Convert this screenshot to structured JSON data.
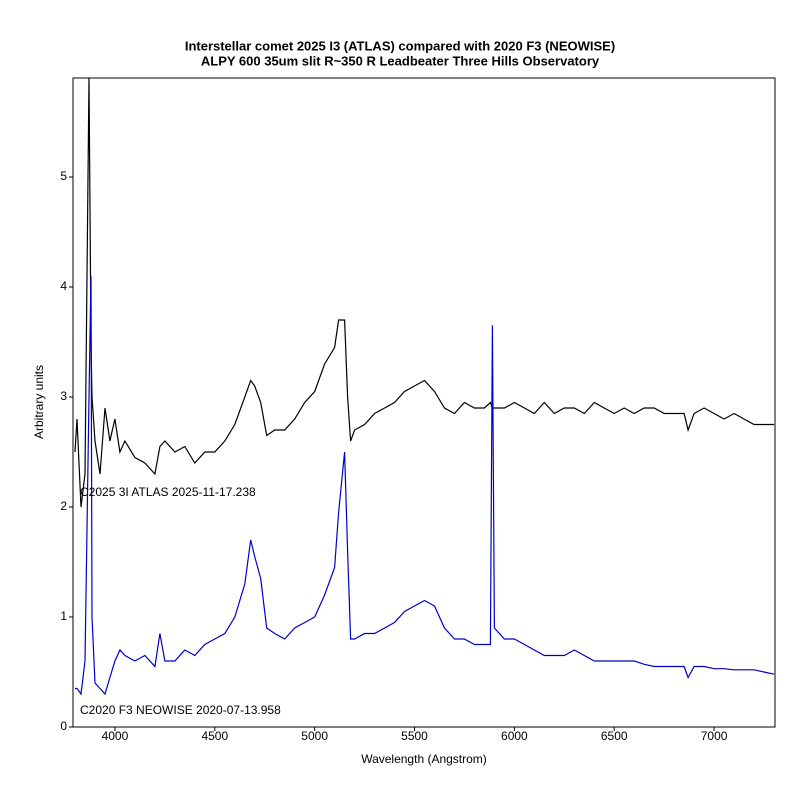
{
  "chart_data": {
    "type": "line",
    "title": "Interstellar comet 2025 I3 (ATLAS) compared with 2020 F3 (NEOWISE)",
    "subtitle": "ALPY 600  35um slit R~350  R Leadbeater  Three Hills Observatory",
    "x_label": "Wavelength (Angstrom)",
    "y_label": "Arbitrary units",
    "xlim": [
      3790,
      7305
    ],
    "ylim": [
      0,
      5.9
    ],
    "xticks": [
      4000,
      4500,
      5000,
      5500,
      6000,
      6500,
      7000
    ],
    "yticks": [
      0,
      1,
      2,
      3,
      4,
      5
    ],
    "x": [
      3800,
      3810,
      3830,
      3850,
      3870,
      3880,
      3885,
      3900,
      3925,
      3950,
      3975,
      4000,
      4025,
      4050,
      4100,
      4150,
      4200,
      4225,
      4250,
      4300,
      4350,
      4400,
      4450,
      4500,
      4550,
      4600,
      4650,
      4680,
      4700,
      4730,
      4760,
      4800,
      4850,
      4900,
      4950,
      5000,
      5050,
      5100,
      5120,
      5150,
      5165,
      5180,
      5200,
      5250,
      5300,
      5350,
      5400,
      5450,
      5500,
      5550,
      5600,
      5650,
      5700,
      5750,
      5800,
      5850,
      5880,
      5890,
      5900,
      5950,
      6000,
      6050,
      6100,
      6150,
      6200,
      6250,
      6300,
      6350,
      6400,
      6450,
      6500,
      6550,
      6600,
      6650,
      6700,
      6750,
      6800,
      6850,
      6870,
      6900,
      6950,
      7000,
      7050,
      7100,
      7150,
      7200,
      7250,
      7300
    ],
    "series": [
      {
        "name": "C2025 3I ATLAS  2025-11-17.238",
        "color": "#000000",
        "values": [
          2.5,
          2.8,
          2.0,
          2.3,
          5.9,
          3.5,
          3.0,
          2.6,
          2.3,
          2.9,
          2.6,
          2.8,
          2.5,
          2.6,
          2.45,
          2.4,
          2.3,
          2.55,
          2.6,
          2.5,
          2.55,
          2.4,
          2.5,
          2.5,
          2.6,
          2.75,
          3.0,
          3.15,
          3.1,
          2.95,
          2.65,
          2.7,
          2.7,
          2.8,
          2.95,
          3.05,
          3.3,
          3.45,
          3.7,
          3.7,
          3.0,
          2.6,
          2.7,
          2.75,
          2.85,
          2.9,
          2.95,
          3.05,
          3.1,
          3.15,
          3.05,
          2.9,
          2.85,
          2.95,
          2.9,
          2.9,
          2.95,
          2.9,
          2.9,
          2.9,
          2.95,
          2.9,
          2.85,
          2.95,
          2.85,
          2.9,
          2.9,
          2.85,
          2.95,
          2.9,
          2.85,
          2.9,
          2.85,
          2.9,
          2.9,
          2.85,
          2.85,
          2.85,
          2.7,
          2.85,
          2.9,
          2.85,
          2.8,
          2.85,
          2.8,
          2.75,
          2.75,
          2.75
        ]
      },
      {
        "name": "C2020 F3 NEOWISE  2020-07-13.958",
        "color": "#0000cc",
        "values": [
          0.35,
          0.35,
          0.3,
          0.6,
          3.0,
          4.1,
          1.0,
          0.4,
          0.35,
          0.3,
          0.45,
          0.6,
          0.7,
          0.65,
          0.6,
          0.65,
          0.55,
          0.85,
          0.6,
          0.6,
          0.7,
          0.65,
          0.75,
          0.8,
          0.85,
          1.0,
          1.3,
          1.7,
          1.55,
          1.35,
          0.9,
          0.85,
          0.8,
          0.9,
          0.95,
          1.0,
          1.2,
          1.45,
          1.95,
          2.5,
          1.6,
          0.8,
          0.8,
          0.85,
          0.85,
          0.9,
          0.95,
          1.05,
          1.1,
          1.15,
          1.1,
          0.9,
          0.8,
          0.8,
          0.75,
          0.75,
          0.75,
          3.65,
          0.9,
          0.8,
          0.8,
          0.75,
          0.7,
          0.65,
          0.65,
          0.65,
          0.7,
          0.65,
          0.6,
          0.6,
          0.6,
          0.6,
          0.6,
          0.57,
          0.55,
          0.55,
          0.55,
          0.55,
          0.45,
          0.55,
          0.55,
          0.53,
          0.53,
          0.52,
          0.52,
          0.52,
          0.5,
          0.48
        ]
      }
    ]
  }
}
